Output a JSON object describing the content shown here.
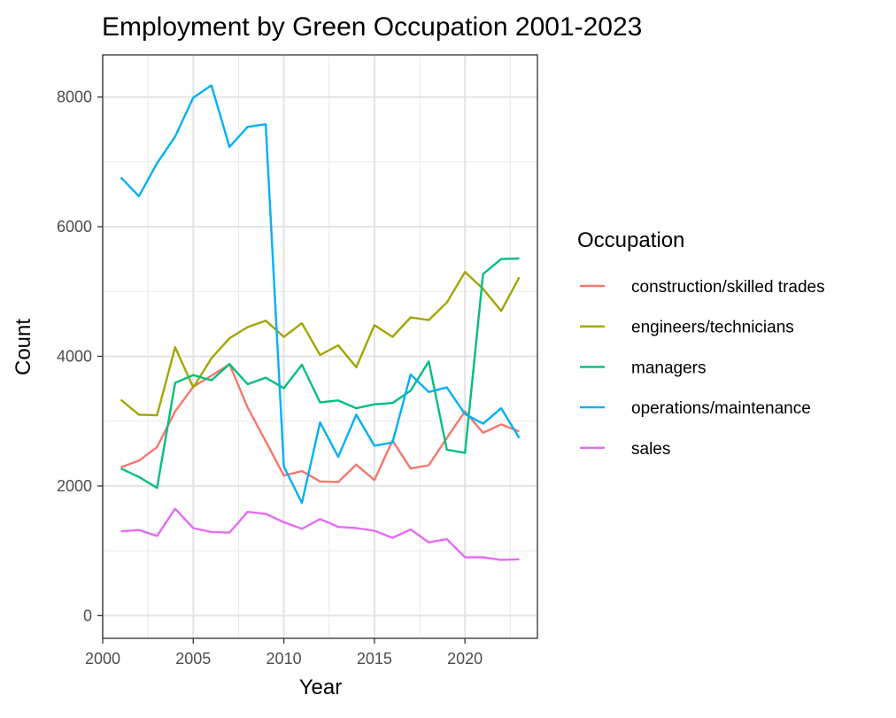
{
  "chart_data": {
    "type": "line",
    "title": "Employment by Green Occupation 2001-2023",
    "xlabel": "Year",
    "ylabel": "Count",
    "xlim": [
      2000,
      2024
    ],
    "ylim": [
      -350,
      8650
    ],
    "x_ticks": [
      2000,
      2005,
      2010,
      2015,
      2020
    ],
    "y_ticks": [
      0,
      2000,
      4000,
      6000,
      8000
    ],
    "grid": true,
    "legend_title": "Occupation",
    "legend_position": "right",
    "x": [
      2001,
      2002,
      2003,
      2004,
      2005,
      2006,
      2007,
      2008,
      2009,
      2010,
      2011,
      2012,
      2013,
      2014,
      2015,
      2016,
      2017,
      2018,
      2019,
      2020,
      2021,
      2022,
      2023
    ],
    "series": [
      {
        "name": "construction/skilled trades",
        "color": "#F8766D",
        "values": [
          2290,
          2390,
          2600,
          3150,
          3530,
          3700,
          3880,
          3210,
          2690,
          2160,
          2230,
          2070,
          2060,
          2330,
          2090,
          2700,
          2270,
          2320,
          2740,
          3150,
          2820,
          2950,
          2840
        ]
      },
      {
        "name": "engineers/technicians",
        "color": "#A3A500",
        "values": [
          3330,
          3100,
          3090,
          4140,
          3520,
          3970,
          4280,
          4450,
          4550,
          4300,
          4510,
          4020,
          4170,
          3830,
          4480,
          4300,
          4600,
          4560,
          4830,
          5300,
          5040,
          4700,
          5220
        ]
      },
      {
        "name": "managers",
        "color": "#00BF7D",
        "values": [
          2270,
          2140,
          1970,
          3590,
          3710,
          3630,
          3880,
          3570,
          3670,
          3510,
          3870,
          3290,
          3320,
          3200,
          3260,
          3280,
          3470,
          3920,
          2560,
          2510,
          5270,
          5500,
          5510
        ]
      },
      {
        "name": "operations/maintenance",
        "color": "#00B0F6",
        "values": [
          6760,
          6470,
          6980,
          7390,
          7990,
          8180,
          7230,
          7540,
          7580,
          2300,
          1740,
          2980,
          2450,
          3100,
          2620,
          2670,
          3720,
          3450,
          3520,
          3110,
          2960,
          3200,
          2740
        ]
      },
      {
        "name": "sales",
        "color": "#E76BF3",
        "values": [
          1300,
          1320,
          1230,
          1650,
          1350,
          1290,
          1280,
          1600,
          1570,
          1440,
          1340,
          1490,
          1370,
          1350,
          1310,
          1200,
          1330,
          1130,
          1180,
          900,
          900,
          860,
          870
        ]
      }
    ]
  }
}
